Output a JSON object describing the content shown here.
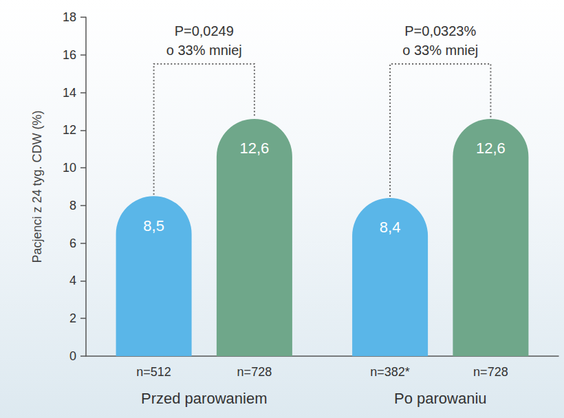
{
  "chart_data": {
    "type": "bar",
    "ylabel": "Pacjenci z 24 tyg. CDW (%)",
    "categories": [
      "Przed parowaniem",
      "Po parowaniu"
    ],
    "series": [
      {
        "color": "#5ab6e8",
        "values": [
          8.5,
          8.4
        ],
        "value_labels": [
          "8,5",
          "8,4"
        ],
        "n_labels": [
          "n=512",
          "n=382*"
        ]
      },
      {
        "color": "#6fa78a",
        "values": [
          12.6,
          12.6
        ],
        "value_labels": [
          "12,6",
          "12,6"
        ],
        "n_labels": [
          "n=728",
          "n=728"
        ]
      }
    ],
    "annotations": [
      {
        "category": "Przed parowaniem",
        "text": [
          "P=0,0249",
          "o 33% mniej"
        ]
      },
      {
        "category": "Po parowaniu",
        "text": [
          "P=0,0323%",
          "o 33% mniej"
        ]
      }
    ],
    "ylim": [
      0,
      18
    ],
    "yticks": [
      0,
      2,
      4,
      6,
      8,
      10,
      12,
      14,
      16,
      18
    ],
    "grid": false,
    "data_labels": true
  }
}
